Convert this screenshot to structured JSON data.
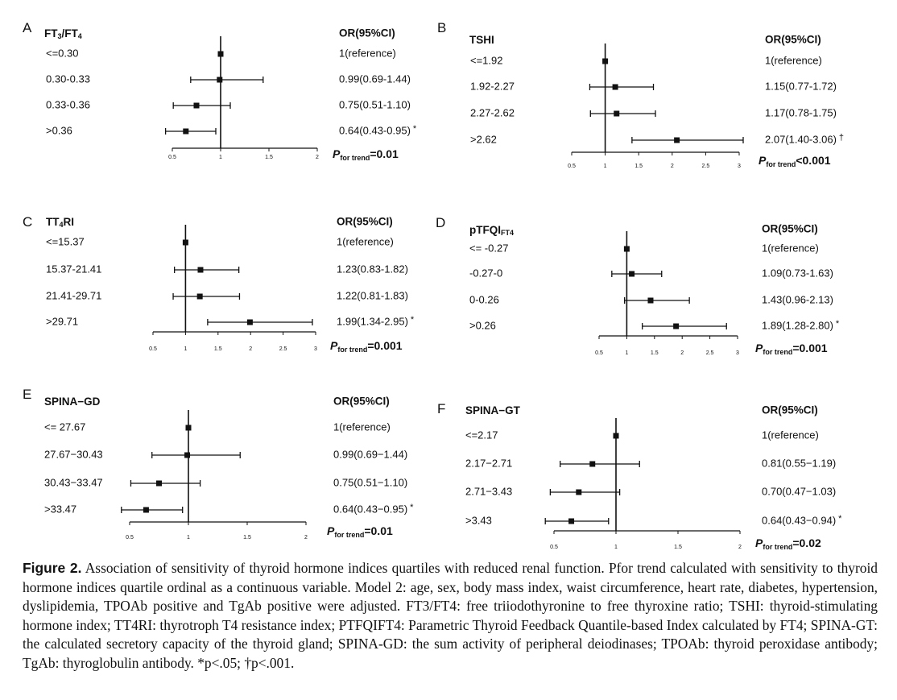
{
  "chart_data": [
    {
      "type": "forest",
      "panel": "A",
      "title": "FT3/FT4",
      "title_parts": [
        {
          "t": "FT",
          "sub": "3"
        },
        {
          "t": "/FT",
          "sub": "4"
        }
      ],
      "or_header": "OR(95%CI)",
      "reference_line": 1,
      "xlim": [
        0.5,
        2
      ],
      "xticks": [
        "0.5",
        "1",
        "1.5",
        "2"
      ],
      "rows": [
        {
          "label": "<=0.30",
          "or": 1.0,
          "lo": 1.0,
          "hi": 1.0,
          "text": "1(reference)",
          "mark": ""
        },
        {
          "label": "0.30-0.33",
          "or": 0.99,
          "lo": 0.69,
          "hi": 1.44,
          "text": "0.99(0.69-1.44)",
          "mark": ""
        },
        {
          "label": "0.33-0.36",
          "or": 0.75,
          "lo": 0.51,
          "hi": 1.1,
          "text": "0.75(0.51-1.10)",
          "mark": ""
        },
        {
          "label": ">0.36",
          "or": 0.64,
          "lo": 0.43,
          "hi": 0.95,
          "text": "0.64(0.43-0.95)",
          "mark": "*"
        }
      ],
      "p_trend": "=0.01"
    },
    {
      "type": "forest",
      "panel": "B",
      "title": "TSHI",
      "title_parts": [
        {
          "t": "TSHI",
          "sub": ""
        }
      ],
      "or_header": "OR(95%CI)",
      "reference_line": 1,
      "xlim": [
        0.5,
        3
      ],
      "xticks": [
        "0.5",
        "1",
        "1.5",
        "2",
        "2.5",
        "3"
      ],
      "rows": [
        {
          "label": "<=1.92",
          "or": 1.0,
          "lo": 1.0,
          "hi": 1.0,
          "text": "1(reference)",
          "mark": ""
        },
        {
          "label": "1.92-2.27",
          "or": 1.15,
          "lo": 0.77,
          "hi": 1.72,
          "text": "1.15(0.77-1.72)",
          "mark": ""
        },
        {
          "label": "2.27-2.62",
          "or": 1.17,
          "lo": 0.78,
          "hi": 1.75,
          "text": "1.17(0.78-1.75)",
          "mark": ""
        },
        {
          "label": ">2.62",
          "or": 2.07,
          "lo": 1.4,
          "hi": 3.06,
          "text": "2.07(1.40-3.06)",
          "mark": "†"
        }
      ],
      "p_trend": "<0.001"
    },
    {
      "type": "forest",
      "panel": "C",
      "title": "TT4RI",
      "title_parts": [
        {
          "t": "TT",
          "sub": "4"
        },
        {
          "t": "RI",
          "sub": ""
        }
      ],
      "or_header": "OR(95%CI)",
      "reference_line": 1,
      "xlim": [
        0.5,
        3
      ],
      "xticks": [
        "0.5",
        "1",
        "1.5",
        "2",
        "2.5",
        "3"
      ],
      "rows": [
        {
          "label": "<=15.37",
          "or": 1.0,
          "lo": 1.0,
          "hi": 1.0,
          "text": "1(reference)",
          "mark": ""
        },
        {
          "label": "15.37-21.41",
          "or": 1.23,
          "lo": 0.83,
          "hi": 1.82,
          "text": "1.23(0.83-1.82)",
          "mark": ""
        },
        {
          "label": "21.41-29.71",
          "or": 1.22,
          "lo": 0.81,
          "hi": 1.83,
          "text": "1.22(0.81-1.83)",
          "mark": ""
        },
        {
          "label": ">29.71",
          "or": 1.99,
          "lo": 1.34,
          "hi": 2.95,
          "text": "1.99(1.34-2.95)",
          "mark": "*"
        }
      ],
      "p_trend": "=0.001"
    },
    {
      "type": "forest",
      "panel": "D",
      "title": "pTFQIFT4",
      "title_parts": [
        {
          "t": "pTFQI",
          "sub": "FT4"
        }
      ],
      "or_header": "OR(95%CI)",
      "reference_line": 1,
      "xlim": [
        0.5,
        3
      ],
      "xticks": [
        "0.5",
        "1",
        "1.5",
        "2",
        "2.5",
        "3"
      ],
      "rows": [
        {
          "label": "<= -0.27",
          "or": 1.0,
          "lo": 1.0,
          "hi": 1.0,
          "text": "1(reference)",
          "mark": ""
        },
        {
          "label": "-0.27-0",
          "or": 1.09,
          "lo": 0.73,
          "hi": 1.63,
          "text": "1.09(0.73-1.63)",
          "mark": ""
        },
        {
          "label": "0-0.26",
          "or": 1.43,
          "lo": 0.96,
          "hi": 2.13,
          "text": "1.43(0.96-2.13)",
          "mark": ""
        },
        {
          "label": ">0.26",
          "or": 1.89,
          "lo": 1.28,
          "hi": 2.8,
          "text": "1.89(1.28-2.80)",
          "mark": "*"
        }
      ],
      "p_trend": "=0.001"
    },
    {
      "type": "forest",
      "panel": "E",
      "title": "SPINA−GD",
      "title_parts": [
        {
          "t": "SPINA−GD",
          "sub": ""
        }
      ],
      "or_header": "OR(95%CI)",
      "reference_line": 1,
      "xlim": [
        0.5,
        2
      ],
      "xticks": [
        "0.5",
        "1",
        "1.5",
        "2"
      ],
      "rows": [
        {
          "label": "<= 27.67",
          "or": 1.0,
          "lo": 1.0,
          "hi": 1.0,
          "text": "1(reference)",
          "mark": ""
        },
        {
          "label": "27.67−30.43",
          "or": 0.99,
          "lo": 0.69,
          "hi": 1.44,
          "text": "0.99(0.69−1.44)",
          "mark": ""
        },
        {
          "label": "30.43−33.47",
          "or": 0.75,
          "lo": 0.51,
          "hi": 1.1,
          "text": "0.75(0.51−1.10)",
          "mark": ""
        },
        {
          "label": ">33.47",
          "or": 0.64,
          "lo": 0.43,
          "hi": 0.95,
          "text": "0.64(0.43−0.95)",
          "mark": "*"
        }
      ],
      "p_trend": "=0.01"
    },
    {
      "type": "forest",
      "panel": "F",
      "title": "SPINA−GT",
      "title_parts": [
        {
          "t": "SPINA−GT",
          "sub": ""
        }
      ],
      "or_header": "OR(95%CI)",
      "reference_line": 1,
      "xlim": [
        0.5,
        2
      ],
      "xticks": [
        "0.5",
        "1",
        "1.5",
        "2"
      ],
      "rows": [
        {
          "label": "<=2.17",
          "or": 1.0,
          "lo": 1.0,
          "hi": 1.0,
          "text": "1(reference)",
          "mark": ""
        },
        {
          "label": "2.17−2.71",
          "or": 0.81,
          "lo": 0.55,
          "hi": 1.19,
          "text": "0.81(0.55−1.19)",
          "mark": ""
        },
        {
          "label": "2.71−3.43",
          "or": 0.7,
          "lo": 0.47,
          "hi": 1.03,
          "text": "0.70(0.47−1.03)",
          "mark": ""
        },
        {
          "label": ">3.43",
          "or": 0.64,
          "lo": 0.43,
          "hi": 0.94,
          "text": "0.64(0.43−0.94)",
          "mark": "*"
        }
      ],
      "p_trend": "=0.02"
    }
  ],
  "p_trend_label": {
    "p": "P",
    "sub": "for trend"
  },
  "caption": {
    "label": "Figure 2.",
    "text": "Association of sensitivity of thyroid hormone indices quartiles with reduced renal function. Pfor trend calculated with sensitivity to thyroid hormone indices quartile ordinal as a continuous variable. Model 2: age, sex, body mass index, waist circumference, heart rate, diabetes, hypertension, dyslipidemia, TPOAb positive and TgAb positive were adjusted. FT3/FT4: free triiodothyronine to free thyroxine ratio; TSHI: thyroid-stimulating hormone index; TT4RI: thyrotroph T4 resistance index; PTFQIFT4: Parametric Thyroid Feedback Quantile-based Index calculated by FT4; SPINA-GT: the calculated secretory capacity of the thyroid gland; SPINA-GD: the sum activity of peripheral deiodinases; TPOAb: thyroid peroxidase antibody; TgAb: thyroglobulin antibody. *p<.05; †p<.001."
  }
}
